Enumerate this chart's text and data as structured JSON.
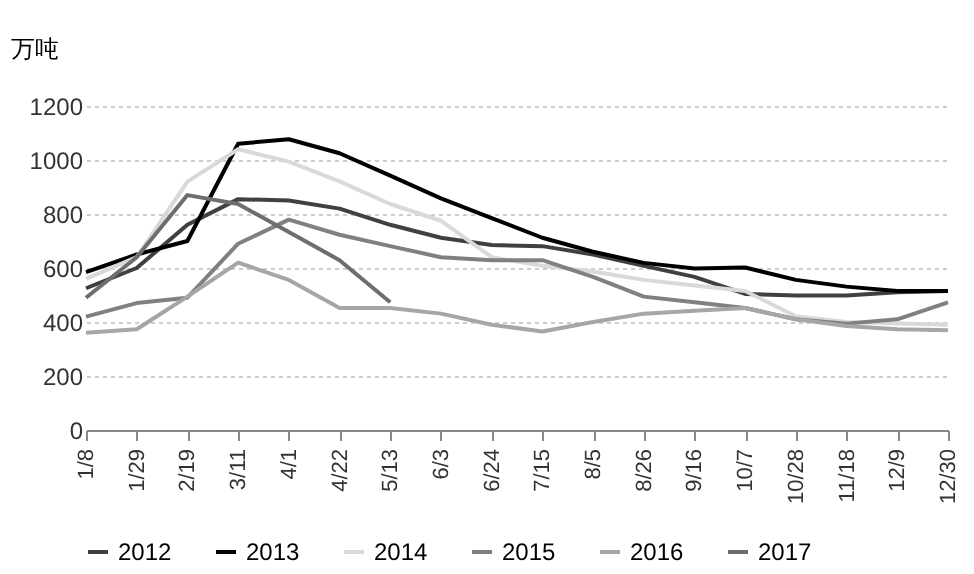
{
  "chart_data": {
    "type": "line",
    "ylabel": "万吨",
    "categories": [
      "1/8",
      "1/29",
      "2/19",
      "3/11",
      "4/1",
      "4/22",
      "5/13",
      "6/3",
      "6/24",
      "7/15",
      "8/5",
      "8/26",
      "9/16",
      "10/7",
      "10/28",
      "11/18",
      "12/9",
      "12/30"
    ],
    "series": [
      {
        "name": "2012",
        "color": "#404040",
        "values": [
          525,
          600,
          760,
          855,
          850,
          820,
          760,
          712,
          685,
          681,
          650,
          608,
          567,
          504,
          498,
          498,
          510,
          515
        ]
      },
      {
        "name": "2013",
        "color": "#000000",
        "values": [
          585,
          650,
          700,
          1060,
          1077,
          1025,
          942,
          858,
          785,
          712,
          660,
          619,
          598,
          602,
          556,
          531,
          515,
          515
        ]
      },
      {
        "name": "2014",
        "color": "#d9d9d9",
        "values": [
          560,
          640,
          920,
          1040,
          994,
          921,
          837,
          775,
          640,
          608,
          587,
          556,
          535,
          515,
          421,
          400,
          394,
          390
        ]
      },
      {
        "name": "2015",
        "color": "#808080",
        "values": [
          420,
          470,
          490,
          690,
          779,
          723,
          681,
          640,
          629,
          629,
          567,
          494,
          473,
          452,
          410,
          394,
          410,
          473
        ]
      },
      {
        "name": "2016",
        "color": "#a6a6a6",
        "values": [
          360,
          373,
          494,
          620,
          556,
          452,
          452,
          431,
          390,
          365,
          400,
          431,
          442,
          452,
          410,
          385,
          373,
          369
        ]
      },
      {
        "name": "2017",
        "color": "#6e6e6e",
        "values": [
          490,
          640,
          870,
          837,
          733,
          629,
          473,
          null,
          null,
          null,
          null,
          null,
          null,
          null,
          null,
          null,
          null,
          null
        ]
      }
    ],
    "ylim": [
      0,
      1200
    ],
    "yticks": [
      0,
      200,
      400,
      600,
      800,
      1000,
      1200
    ],
    "grid": "y",
    "legend": "bottom",
    "marker": "none",
    "line_style": "solid"
  }
}
